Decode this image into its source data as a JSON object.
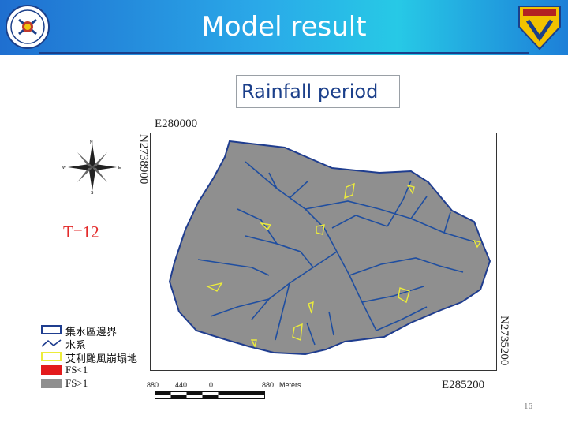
{
  "header": {
    "title": "Model result"
  },
  "subtitle": "Rainfall period",
  "map": {
    "coord_top": "E280000",
    "coord_left": "N2738900",
    "coord_right": "N2735200",
    "coord_bottom": "E285200",
    "period_label": "T=12",
    "compass": {
      "n": "N",
      "s": "S",
      "e": "E",
      "w": "W"
    },
    "scale": {
      "ticks": [
        "880",
        "440",
        "0",
        "880"
      ],
      "unit": "Meters"
    }
  },
  "legend": [
    {
      "label": "集水區邊界",
      "color": "#1f3d8f",
      "style": "outline"
    },
    {
      "label": "水系",
      "color": "#1f3d8f",
      "style": "line"
    },
    {
      "label": "艾利颱風崩塌地",
      "color": "#ecec3a",
      "style": "outline"
    },
    {
      "label": "FS<1",
      "color": "#e31a1c",
      "style": "fill"
    },
    {
      "label": "FS>1",
      "color": "#8f8f8f",
      "style": "fill"
    }
  ],
  "page_number": "16",
  "colors": {
    "banner_start": "#1f6fd0",
    "banner_end": "#27c9e6",
    "watershed_fill": "#8f8f8f",
    "river": "#1f4ea0",
    "landslide": "#ecec3a"
  }
}
